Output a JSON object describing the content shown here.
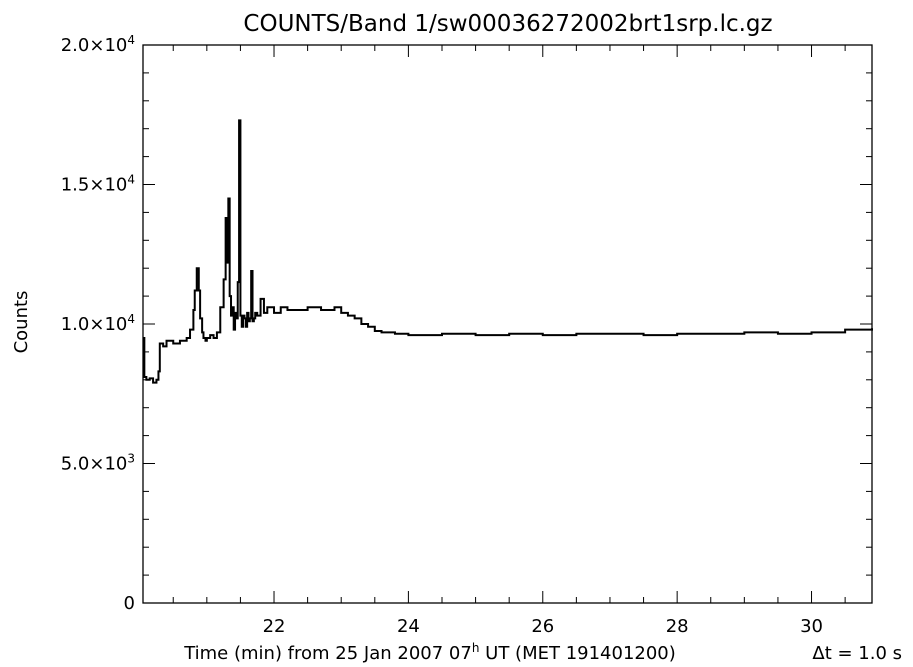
{
  "chart_data": {
    "type": "line",
    "title": "COUNTS/Band 1/sw00036272002brt1srp.lc.gz",
    "ylabel": "Counts",
    "xlabel_parts": {
      "pre": "Time (min) from 25 Jan 2007 07",
      "sup": "h",
      "post": " UT (MET 191401200)"
    },
    "dt_label": "Δt =  1.0 s",
    "xlim": [
      20.05,
      30.9
    ],
    "ylim": [
      0,
      20000
    ],
    "x_ticks": [
      {
        "value": 22,
        "label": "22"
      },
      {
        "value": 24,
        "label": "24"
      },
      {
        "value": 26,
        "label": "26"
      },
      {
        "value": 28,
        "label": "28"
      },
      {
        "value": 30,
        "label": "30"
      }
    ],
    "y_ticks": [
      {
        "value": 0,
        "base": "0",
        "exp": ""
      },
      {
        "value": 5000,
        "base": "5.0×10",
        "exp": "3"
      },
      {
        "value": 10000,
        "base": "1.0×10",
        "exp": "4"
      },
      {
        "value": 15000,
        "base": "1.5×10",
        "exp": "4"
      },
      {
        "value": 20000,
        "base": "2.0×10",
        "exp": "4"
      }
    ],
    "x_minor_step": 0.5,
    "y_minor_step": 1000,
    "grid": false,
    "series": [
      {
        "color": "#000000",
        "x": [
          20.05,
          20.07,
          20.1,
          20.15,
          20.2,
          20.25,
          20.28,
          20.3,
          20.35,
          20.4,
          20.5,
          20.6,
          20.7,
          20.75,
          20.8,
          20.82,
          20.85,
          20.88,
          20.9,
          20.93,
          20.95,
          20.98,
          21.0,
          21.05,
          21.1,
          21.15,
          21.2,
          21.25,
          21.28,
          21.3,
          21.32,
          21.34,
          21.36,
          21.38,
          21.4,
          21.42,
          21.44,
          21.46,
          21.48,
          21.5,
          21.52,
          21.54,
          21.56,
          21.58,
          21.6,
          21.62,
          21.64,
          21.66,
          21.68,
          21.7,
          21.72,
          21.75,
          21.8,
          21.85,
          21.9,
          22.0,
          22.1,
          22.2,
          22.3,
          22.5,
          22.7,
          22.9,
          23.0,
          23.1,
          23.2,
          23.3,
          23.4,
          23.5,
          23.6,
          23.8,
          24.0,
          24.5,
          25.0,
          25.5,
          26.0,
          26.5,
          27.0,
          27.5,
          28.0,
          28.5,
          29.0,
          29.5,
          30.0,
          30.5,
          30.9
        ],
        "y": [
          9500,
          8100,
          8000,
          8050,
          7900,
          8000,
          8300,
          9300,
          9200,
          9400,
          9300,
          9400,
          9500,
          9800,
          10500,
          11200,
          12000,
          11200,
          10200,
          9700,
          9500,
          9400,
          9500,
          9600,
          9500,
          9700,
          10600,
          11600,
          13800,
          12200,
          14500,
          11000,
          10300,
          10600,
          9800,
          10400,
          10200,
          11500,
          17300,
          10300,
          9900,
          10300,
          10200,
          9900,
          10400,
          10100,
          10200,
          11900,
          10100,
          10200,
          10400,
          10300,
          10900,
          10400,
          10600,
          10400,
          10600,
          10500,
          10500,
          10600,
          10500,
          10600,
          10400,
          10300,
          10200,
          10000,
          9900,
          9750,
          9700,
          9650,
          9600,
          9650,
          9600,
          9650,
          9600,
          9650,
          9650,
          9600,
          9650,
          9650,
          9700,
          9650,
          9700,
          9800,
          9850
        ]
      }
    ]
  }
}
